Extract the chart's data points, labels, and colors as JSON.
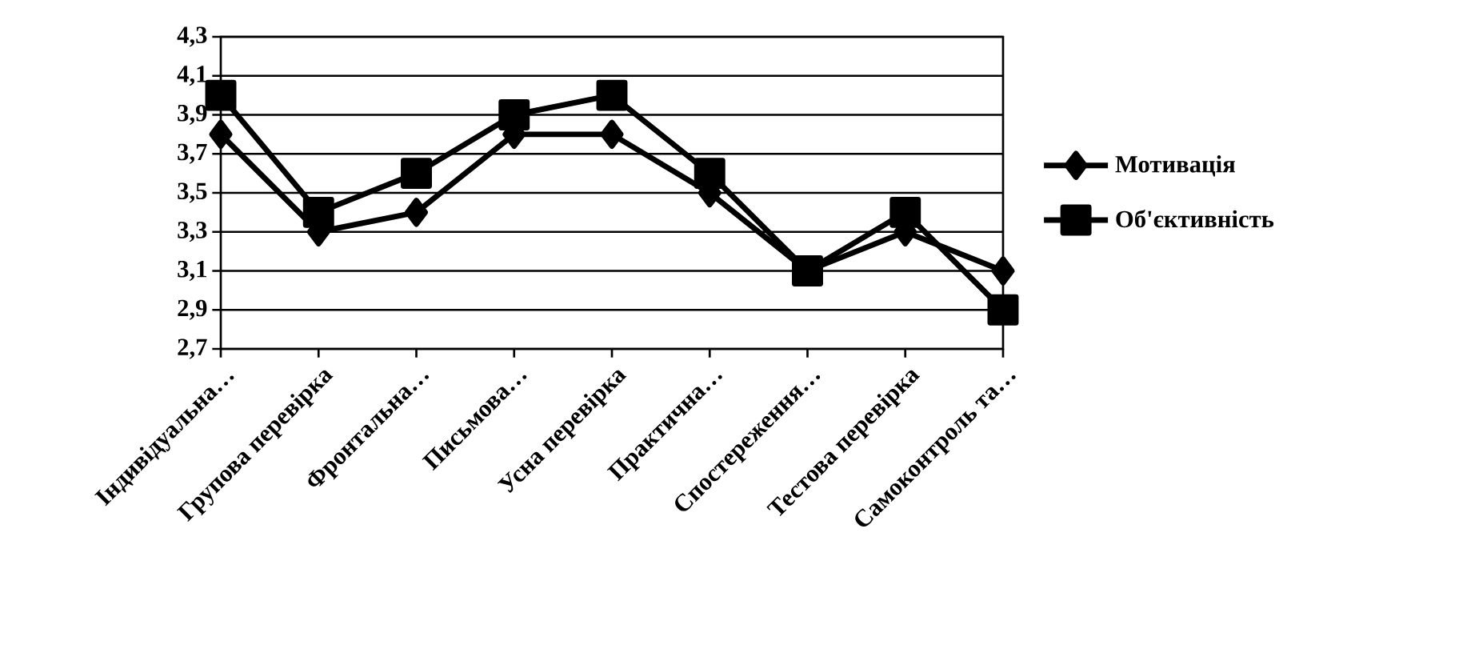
{
  "chart_data": {
    "type": "line",
    "categories": [
      "Індивідуальна…",
      "Групова перевірка",
      "Фронтальна…",
      "Письмова…",
      "Усна перевірка",
      "Практична…",
      "Спостереження…",
      "Тестова перевірка",
      "Самоконтроль та…"
    ],
    "series": [
      {
        "name": "Мотивація",
        "color": "#000000",
        "marker": "diamond",
        "values": [
          3.8,
          3.3,
          3.4,
          3.8,
          3.8,
          3.5,
          3.1,
          3.3,
          3.1
        ]
      },
      {
        "name": "Об'єктивність",
        "color": "#000000",
        "marker": "square",
        "values": [
          4.0,
          3.4,
          3.6,
          3.9,
          4.0,
          3.6,
          3.1,
          3.4,
          2.9
        ]
      }
    ],
    "ylim": [
      2.7,
      4.3
    ],
    "yticks": [
      {
        "value": 2.7,
        "label": "2,7"
      },
      {
        "value": 2.9,
        "label": "2,9"
      },
      {
        "value": 3.1,
        "label": "3,1"
      },
      {
        "value": 3.3,
        "label": "3,3"
      },
      {
        "value": 3.5,
        "label": "3,5"
      },
      {
        "value": 3.7,
        "label": "3,7"
      },
      {
        "value": 3.9,
        "label": "3,9"
      },
      {
        "value": 4.1,
        "label": "4,1"
      },
      {
        "value": 4.3,
        "label": "4,3"
      }
    ],
    "grid": "y",
    "legend": "right",
    "line_style": "solid"
  }
}
